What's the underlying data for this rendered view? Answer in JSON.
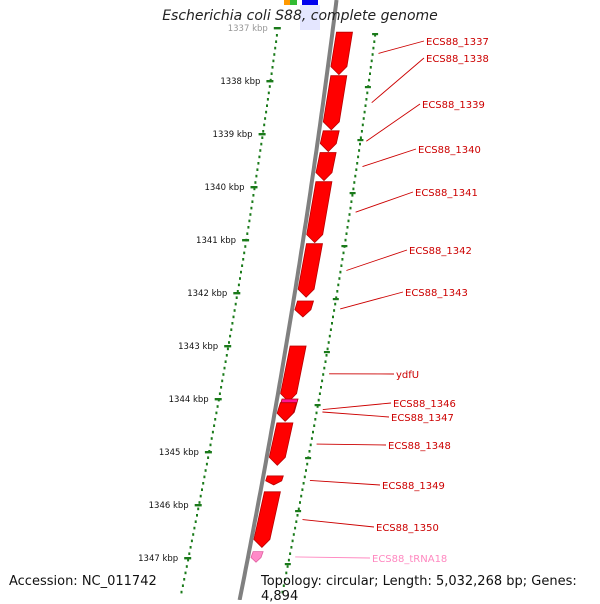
{
  "title": "Escherichia coli S88, complete genome",
  "accession_text": "Accession: NC_011742",
  "summary_text": "Topology: circular; Length: 5,032,268 bp; Genes: 4,894",
  "colors": {
    "gene": "#ff0000",
    "gene_shade": "#b80000",
    "pseudo_gene": "#ff1493",
    "trna": "#ff8ac8",
    "label_gene": "#cc0000",
    "label_trna": "#ff88c0",
    "tick": "#1a7a1a",
    "backbone": "#808080",
    "legend_orange": "#ff9900",
    "legend_green": "#33bb33",
    "legend_blue": "#0000ee"
  },
  "ticks": [
    {
      "label": "1337 kbp",
      "pos": 1337
    },
    {
      "label": "1338 kbp",
      "pos": 1338
    },
    {
      "label": "1339 kbp",
      "pos": 1339
    },
    {
      "label": "1340 kbp",
      "pos": 1340
    },
    {
      "label": "1341 kbp",
      "pos": 1341
    },
    {
      "label": "1342 kbp",
      "pos": 1342
    },
    {
      "label": "1343 kbp",
      "pos": 1343
    },
    {
      "label": "1344 kbp",
      "pos": 1344
    },
    {
      "label": "1345 kbp",
      "pos": 1345
    },
    {
      "label": "1346 kbp",
      "pos": 1346
    },
    {
      "label": "1347 kbp",
      "pos": 1347
    }
  ],
  "features": [
    {
      "label": "ECS88_1337",
      "start": 1337.08,
      "end": 1337.88,
      "type": "gene"
    },
    {
      "label": "ECS88_1338",
      "start": 1337.9,
      "end": 1338.92,
      "type": "gene"
    },
    {
      "label": "ECS88_1339",
      "start": 1338.94,
      "end": 1339.33,
      "type": "gene"
    },
    {
      "label": "ECS88_1340",
      "start": 1339.35,
      "end": 1339.88,
      "type": "gene"
    },
    {
      "label": "ECS88_1341",
      "start": 1339.9,
      "end": 1341.05,
      "type": "gene"
    },
    {
      "label": "ECS88_1342",
      "start": 1341.07,
      "end": 1342.08,
      "type": "gene"
    },
    {
      "label": "ECS88_1343",
      "start": 1342.15,
      "end": 1342.45,
      "type": "gene"
    },
    {
      "label": "ydfU",
      "start": 1343.0,
      "end": 1344.05,
      "type": "gene"
    },
    {
      "label": "ECS88_1346",
      "start": 1344.0,
      "end": 1344.4,
      "type": "pseudo"
    },
    {
      "label": "ECS88_1347",
      "start": 1344.07,
      "end": 1344.42,
      "type": "gene"
    },
    {
      "label": "ECS88_1348",
      "start": 1344.45,
      "end": 1345.25,
      "type": "gene"
    },
    {
      "label": "ECS88_1349",
      "start": 1345.45,
      "end": 1345.62,
      "type": "gene"
    },
    {
      "label": "ECS88_1350",
      "start": 1345.75,
      "end": 1346.8,
      "type": "gene"
    },
    {
      "label": "ECS88_tRNA18",
      "start": 1346.88,
      "end": 1347.08,
      "type": "trna"
    }
  ]
}
